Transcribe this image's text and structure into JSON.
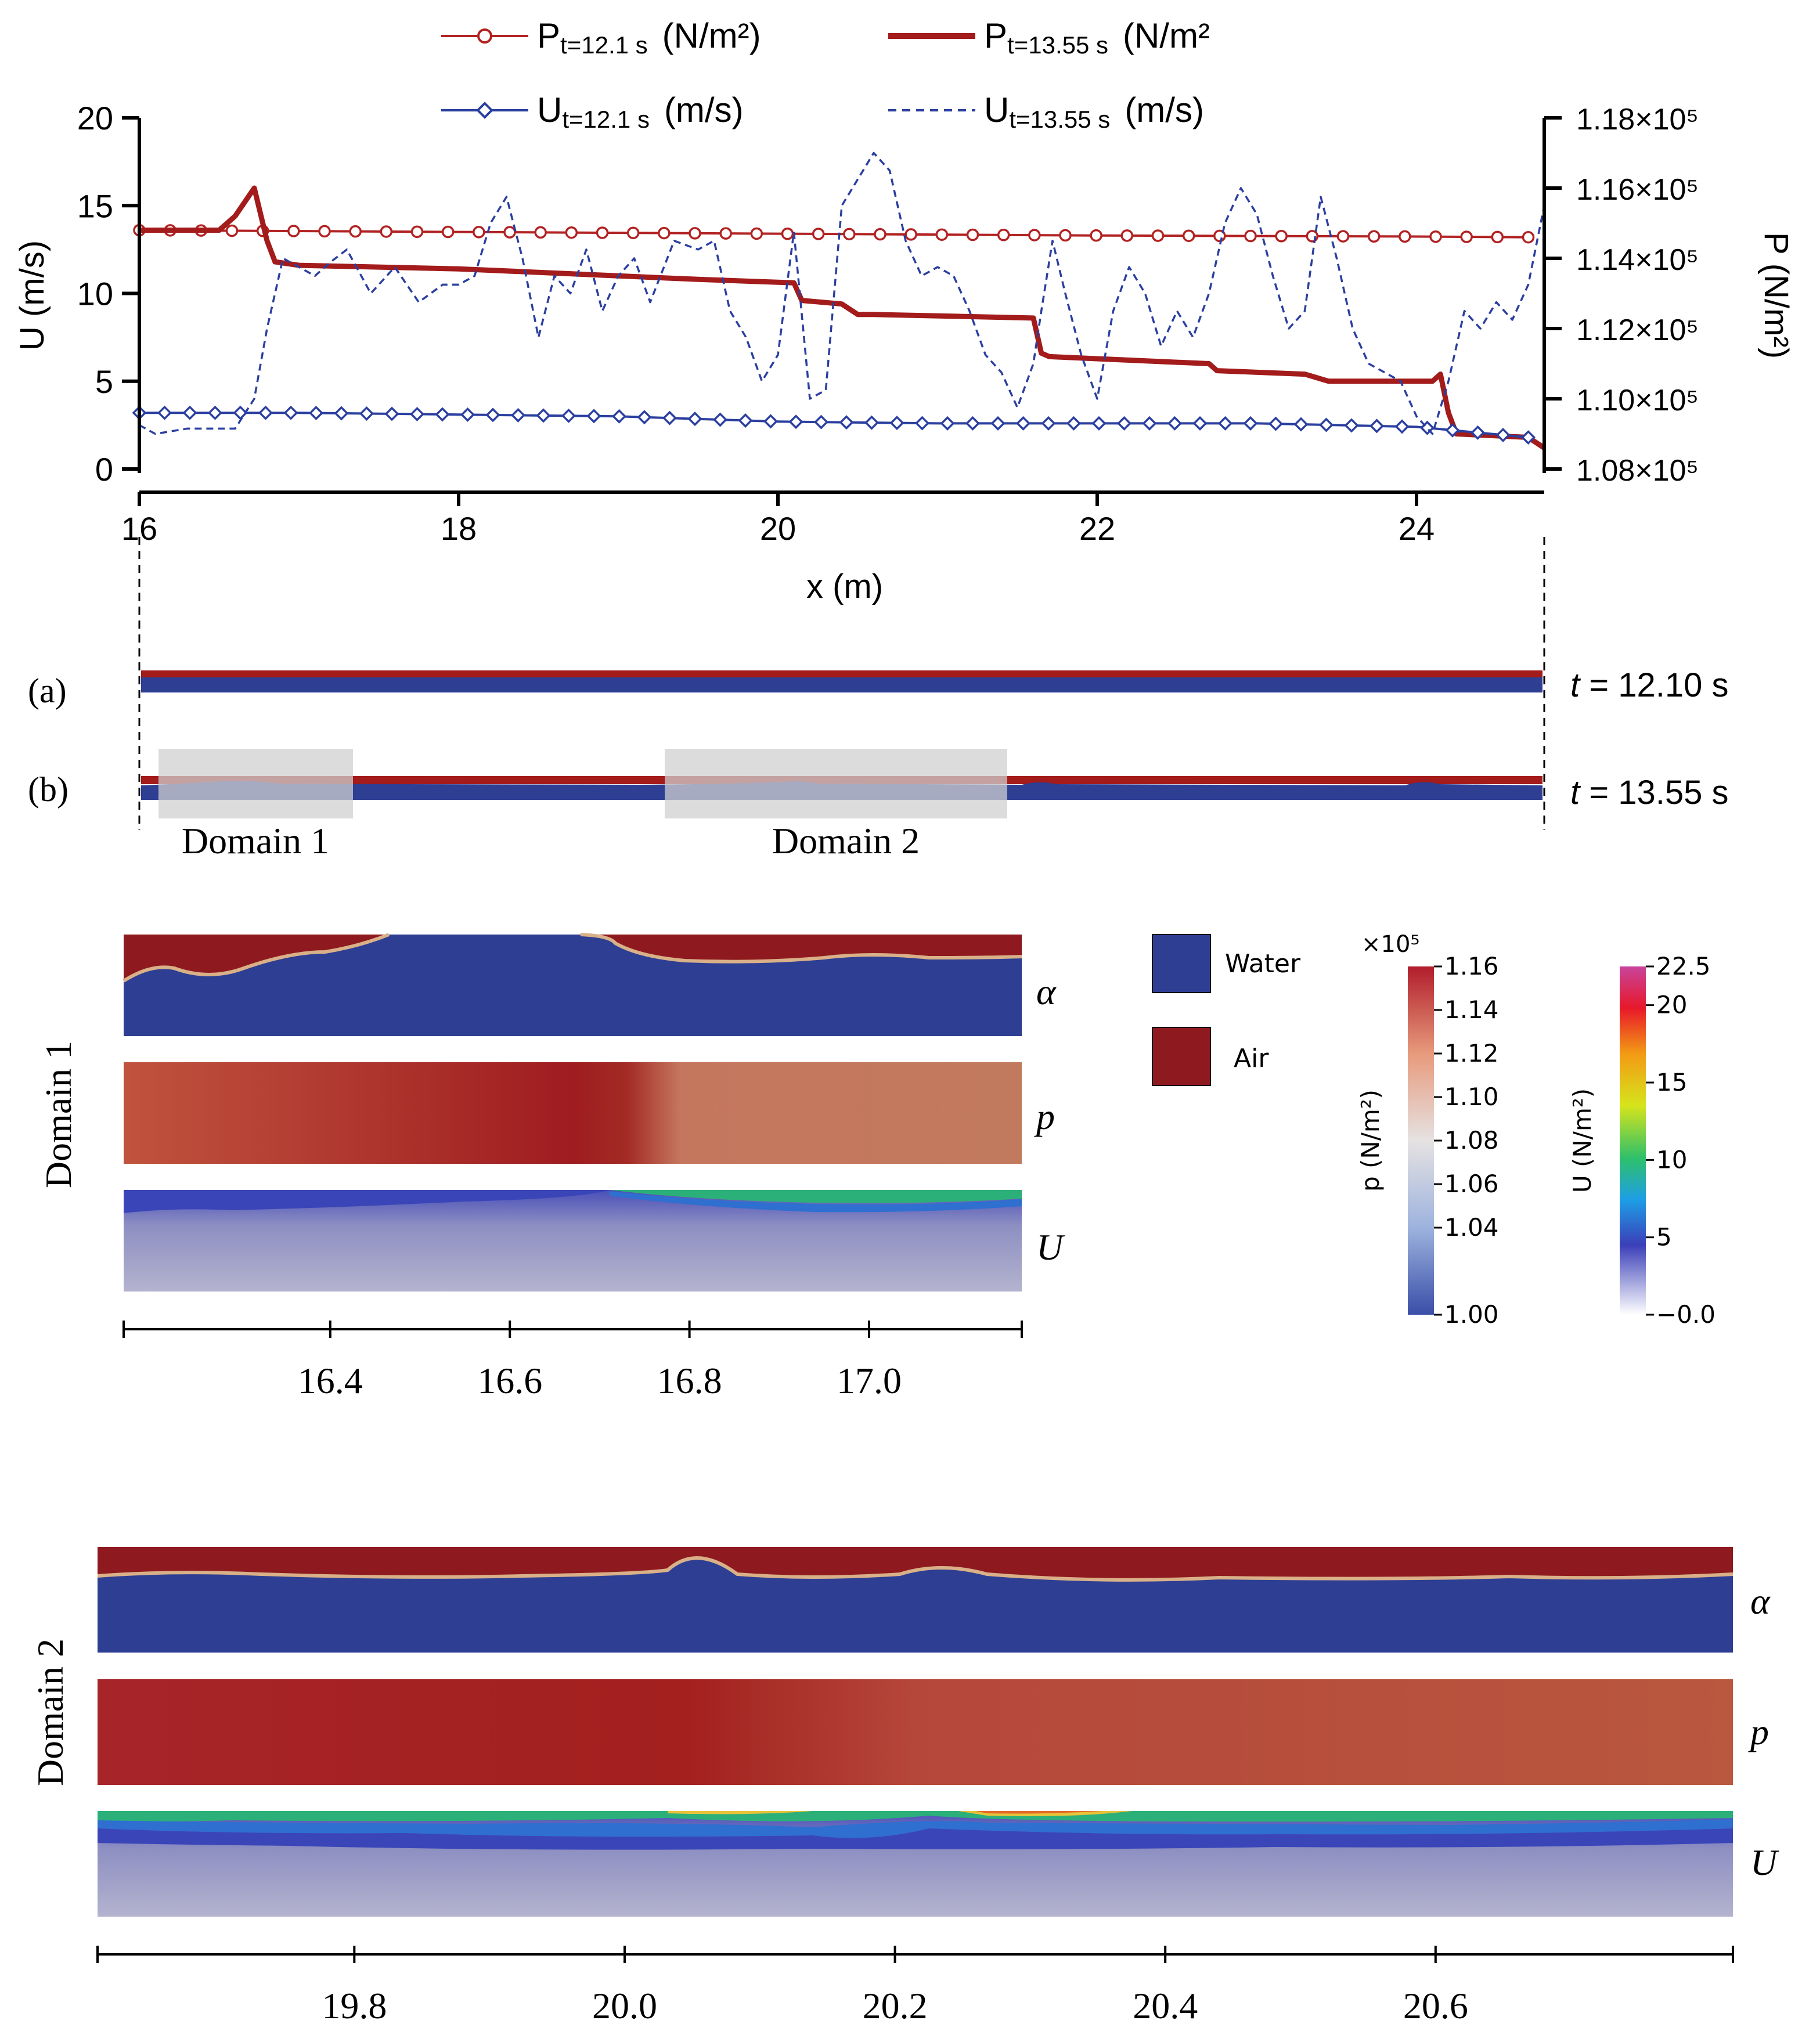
{
  "chart_data": {
    "type": "line",
    "xlabel": "x (m)",
    "ylabel_left": "U (m/s)",
    "ylabel_right": "P (N/m²)",
    "xlim": [
      16,
      24.8
    ],
    "ylim_left": [
      0,
      20
    ],
    "ylim_right": [
      108000,
      118000
    ],
    "x_ticks": [
      "16",
      "18",
      "20",
      "22",
      "24"
    ],
    "y_left_ticks": [
      "0",
      "5",
      "10",
      "15",
      "20"
    ],
    "y_right_ticks": [
      "1.08×10⁵",
      "1.10×10⁵",
      "1.12×10⁵",
      "1.14×10⁵",
      "1.16×10⁵",
      "1.18×10⁵"
    ],
    "legend": {
      "position": "top",
      "entries": [
        {
          "base": "P",
          "sub": "t=12.1 s",
          "unit": "(N/m²)",
          "color": "#b22222",
          "style": "line-circle-markers"
        },
        {
          "base": "P",
          "sub": "t=13.55 s",
          "unit": "(N/m²",
          "color": "#a31b1b",
          "style": "thick-line"
        },
        {
          "base": "U",
          "sub": "t=12.1 s",
          "unit": "(m/s)",
          "color": "#2b3fa0",
          "style": "line-diamond-markers"
        },
        {
          "base": "U",
          "sub": "t=13.55 s",
          "unit": "(m/s)",
          "color": "#2b3fa0",
          "style": "dashed"
        }
      ]
    },
    "series": [
      {
        "name": "P t=12.1 s",
        "axis": "right",
        "color": "#b22222",
        "x": [
          16.0,
          18.0,
          20.0,
          22.0,
          24.0,
          24.7
        ],
        "y": [
          114800,
          114750,
          114700,
          114650,
          114620,
          114600
        ]
      },
      {
        "name": "P t=13.55 s",
        "axis": "right",
        "color": "#a31b1b",
        "x": [
          16.0,
          16.5,
          16.6,
          16.72,
          16.8,
          16.85,
          17.0,
          18.0,
          18.5,
          19.0,
          19.5,
          20.1,
          20.15,
          20.4,
          20.5,
          20.6,
          21.6,
          21.65,
          21.7,
          22.7,
          22.75,
          23.3,
          23.45,
          24.1,
          24.15,
          24.2,
          24.25,
          24.7,
          24.8
        ],
        "y": [
          114800,
          114800,
          115200,
          116000,
          114500,
          113900,
          113800,
          113700,
          113600,
          113500,
          113400,
          113300,
          112800,
          112700,
          112400,
          112400,
          112300,
          111300,
          111200,
          111000,
          110800,
          110700,
          110500,
          110500,
          110700,
          109600,
          109000,
          108900,
          108600
        ]
      },
      {
        "name": "U t=12.1 s",
        "axis": "left",
        "color": "#2b3fa0",
        "x": [
          16.0,
          17.0,
          18.0,
          19.0,
          20.0,
          21.0,
          22.0,
          23.0,
          24.0,
          24.7
        ],
        "y": [
          3.2,
          3.2,
          3.1,
          3.0,
          2.7,
          2.6,
          2.6,
          2.6,
          2.4,
          1.8
        ]
      },
      {
        "name": "U t=13.55 s",
        "axis": "left",
        "color": "#2b3fa0",
        "x": [
          16.0,
          16.1,
          16.3,
          16.6,
          16.72,
          16.8,
          16.9,
          17.0,
          17.1,
          17.2,
          17.3,
          17.45,
          17.6,
          17.75,
          17.9,
          18.0,
          18.1,
          18.2,
          18.3,
          18.4,
          18.5,
          18.6,
          18.7,
          18.8,
          18.9,
          19.0,
          19.1,
          19.2,
          19.35,
          19.5,
          19.6,
          19.7,
          19.8,
          19.9,
          20.0,
          20.1,
          20.2,
          20.3,
          20.4,
          20.5,
          20.6,
          20.7,
          20.8,
          20.9,
          21.0,
          21.1,
          21.2,
          21.3,
          21.4,
          21.5,
          21.6,
          21.65,
          21.72,
          21.8,
          21.9,
          22.0,
          22.1,
          22.2,
          22.3,
          22.4,
          22.5,
          22.6,
          22.7,
          22.8,
          22.9,
          23.0,
          23.1,
          23.2,
          23.3,
          23.4,
          23.5,
          23.6,
          23.7,
          23.8,
          23.9,
          24.0,
          24.1,
          24.2,
          24.3,
          24.4,
          24.5,
          24.6,
          24.7,
          24.8
        ],
        "y": [
          2.5,
          2.0,
          2.3,
          2.3,
          4.0,
          8.0,
          12.0,
          11.5,
          11.0,
          11.8,
          12.5,
          10.0,
          11.5,
          9.5,
          10.5,
          10.5,
          11.0,
          14.0,
          15.5,
          12.0,
          7.5,
          11.0,
          10.0,
          12.5,
          9.0,
          11.0,
          12.0,
          9.5,
          13.0,
          12.5,
          13.0,
          9.0,
          7.5,
          5.0,
          6.5,
          13.5,
          4.0,
          4.5,
          15.0,
          16.5,
          18.0,
          17.0,
          13.0,
          11.0,
          11.5,
          11.0,
          9.0,
          6.5,
          5.5,
          3.5,
          6.0,
          9.0,
          13.0,
          10.0,
          6.5,
          4.0,
          9.0,
          11.5,
          10.0,
          7.0,
          9.0,
          7.5,
          10.0,
          14.0,
          16.0,
          14.5,
          11.0,
          8.0,
          9.0,
          15.5,
          12.0,
          8.0,
          6.0,
          5.5,
          5.0,
          3.0,
          2.0,
          5.0,
          9.0,
          8.0,
          9.5,
          8.5,
          10.5,
          15.0
        ]
      }
    ]
  },
  "strip": {
    "label_a": "(a)",
    "label_b": "(b)",
    "time_a_prefix": "t",
    "time_a_value": " = 12.10 s",
    "time_b_prefix": "t",
    "time_b_value": " = 13.55 s",
    "domain1_label": "Domain 1",
    "domain2_label": "Domain 2"
  },
  "domain1": {
    "side_label": "Domain 1",
    "row_labels": [
      "α",
      "p",
      "U"
    ],
    "axis_ticks": [
      "16.4",
      "16.6",
      "16.8",
      "17.0"
    ]
  },
  "domain2": {
    "side_label": "Domain 2",
    "row_labels": [
      "α",
      "p",
      "U"
    ],
    "axis_ticks": [
      "19.8",
      "20.0",
      "20.2",
      "20.4",
      "20.6"
    ]
  },
  "legend_phase": {
    "water_label": "Water",
    "air_label": "Air",
    "water_color": "#2d3e93",
    "air_color": "#8e1a1f"
  },
  "colorbar_p": {
    "multiplier": "×10⁵",
    "ticks": [
      "1.16",
      "1.14",
      "1.12",
      "1.10",
      "1.08",
      "1.06",
      "1.04",
      "1.00"
    ],
    "label": "p (N/m²)"
  },
  "colorbar_u": {
    "ticks": [
      "22.5",
      "20",
      "15",
      "10",
      "5",
      "−0.0"
    ],
    "label": "U (N/m²)"
  }
}
